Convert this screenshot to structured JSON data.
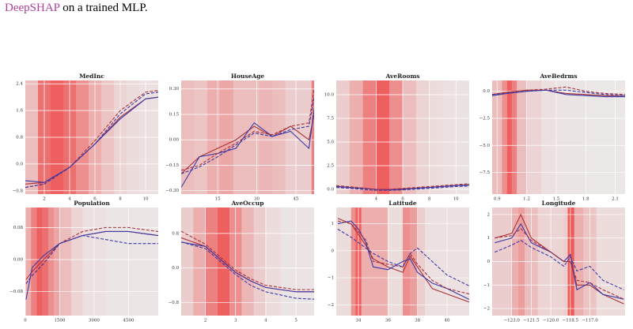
{
  "caption": {
    "link": "DeepSHAP",
    "text": "on a trained MLP."
  },
  "chart_data": [
    {
      "type": "line",
      "title": "MedInc",
      "xlim": [
        0.5,
        11
      ],
      "xticks": [
        2,
        4,
        6,
        8,
        10
      ],
      "ylim": [
        -0.9,
        2.5
      ],
      "yticks": [
        {
          "value": -0.8,
          "label": "−0.8"
        },
        {
          "value": 0,
          "label": "0.0"
        },
        0.8,
        1.6,
        2.4
      ],
      "x": [
        0.5,
        2,
        4,
        6,
        8,
        10,
        11
      ],
      "series": [
        {
          "color": "#a8323a",
          "dash": false,
          "values": [
            -0.6,
            -0.55,
            -0.1,
            0.6,
            1.4,
            1.95,
            2.0
          ]
        },
        {
          "color": "#3a3aa8",
          "dash": false,
          "values": [
            -0.5,
            -0.55,
            -0.1,
            0.6,
            1.35,
            1.95,
            2.0
          ]
        },
        {
          "color": "#a8323a",
          "dash": true,
          "values": [
            -0.7,
            -0.6,
            -0.1,
            0.7,
            1.6,
            2.15,
            2.2
          ]
        },
        {
          "color": "#3a3aa8",
          "dash": true,
          "values": [
            -0.7,
            -0.6,
            -0.1,
            0.6,
            1.5,
            2.1,
            2.15
          ]
        }
      ],
      "density_bins": [
        0.5,
        1.5,
        2.5,
        3.5,
        4.5,
        5.5,
        6.5,
        7.5,
        8.5,
        9.5,
        11
      ],
      "density": [
        0.3,
        0.8,
        0.9,
        0.8,
        0.6,
        0.4,
        0.25,
        0.15,
        0.1,
        0.08
      ]
    },
    {
      "type": "line",
      "title": "HouseAge",
      "xlim": [
        1,
        52
      ],
      "xticks": [
        15,
        30,
        45
      ],
      "ylim": [
        -0.32,
        0.35
      ],
      "yticks": [
        {
          "value": -0.3,
          "label": "−0.30"
        },
        {
          "value": -0.15,
          "label": "−0.15"
        },
        {
          "value": 0,
          "label": "0.00"
        },
        0.15,
        {
          "value": 0.3,
          "label": "0.30"
        }
      ],
      "x": [
        1,
        8,
        15,
        22,
        29,
        36,
        43,
        50,
        52
      ],
      "series": [
        {
          "color": "#a8323a",
          "dash": false,
          "values": [
            -0.2,
            -0.1,
            -0.05,
            0.0,
            0.08,
            0.02,
            0.08,
            0.0,
            0.15
          ]
        },
        {
          "color": "#3a3aa8",
          "dash": false,
          "values": [
            -0.28,
            -0.1,
            -0.08,
            -0.05,
            0.1,
            0.02,
            0.05,
            -0.05,
            0.18
          ]
        },
        {
          "color": "#a8323a",
          "dash": true,
          "values": [
            -0.18,
            -0.15,
            -0.08,
            -0.02,
            0.05,
            0.03,
            0.08,
            0.1,
            0.3
          ]
        },
        {
          "color": "#3a3aa8",
          "dash": true,
          "values": [
            -0.2,
            -0.16,
            -0.1,
            -0.03,
            0.04,
            0.02,
            0.06,
            0.08,
            0.25
          ]
        }
      ],
      "density_bins": [
        1,
        6,
        11,
        16,
        21,
        26,
        31,
        36,
        41,
        46,
        51,
        52
      ],
      "density": [
        0.3,
        0.25,
        0.4,
        0.45,
        0.3,
        0.3,
        0.35,
        0.3,
        0.2,
        0.2,
        0.7
      ]
    },
    {
      "type": "line",
      "title": "AveRooms",
      "xlim": [
        1,
        11
      ],
      "xticks": [
        4,
        6,
        8,
        10
      ],
      "ylim": [
        -0.5,
        11.5
      ],
      "yticks": [
        {
          "value": 0,
          "label": "0.0"
        },
        2.5,
        {
          "value": 5,
          "label": "5.0"
        },
        7.5,
        {
          "value": 10,
          "label": "10.0"
        }
      ],
      "x": [
        1,
        3,
        4,
        5,
        6,
        8,
        10,
        11
      ],
      "series": [
        {
          "color": "#a8323a",
          "dash": false,
          "values": [
            0.3,
            0.1,
            0,
            0,
            0.05,
            0.2,
            0.4,
            0.5
          ]
        },
        {
          "color": "#3a3aa8",
          "dash": false,
          "values": [
            0.3,
            0.1,
            0,
            -0.05,
            0,
            0.2,
            0.4,
            0.45
          ]
        },
        {
          "color": "#a8323a",
          "dash": true,
          "values": [
            0.4,
            0.15,
            0,
            0,
            0.1,
            0.3,
            0.5,
            0.6
          ]
        },
        {
          "color": "#3a3aa8",
          "dash": true,
          "values": [
            0.2,
            0.0,
            -0.1,
            -0.1,
            -0.05,
            0.1,
            0.3,
            0.35
          ]
        }
      ],
      "density_bins": [
        1,
        2,
        3,
        4,
        5,
        6,
        7,
        8,
        9,
        10,
        11
      ],
      "density": [
        0.2,
        0.4,
        0.7,
        0.9,
        0.6,
        0.3,
        0.15,
        0.1,
        0.08,
        0.06
      ]
    },
    {
      "type": "line",
      "title": "AveBedrms",
      "xlim": [
        0.85,
        2.2
      ],
      "xticks": [
        0.9,
        1.2,
        1.5,
        1.8,
        2.1
      ],
      "ylim": [
        -9.5,
        1
      ],
      "yticks": [
        {
          "value": -7.5,
          "label": "−7.5"
        },
        {
          "value": -5,
          "label": "−5.0"
        },
        {
          "value": -2.5,
          "label": "−2.5"
        },
        {
          "value": 0,
          "label": "0.0"
        }
      ],
      "x": [
        0.85,
        1.0,
        1.2,
        1.4,
        1.6,
        1.8,
        2.0,
        2.2
      ],
      "series": [
        {
          "color": "#a8323a",
          "dash": false,
          "values": [
            -0.3,
            -0.1,
            0.1,
            0.1,
            -0.2,
            -0.3,
            -0.4,
            -0.4
          ]
        },
        {
          "color": "#3a3aa8",
          "dash": false,
          "values": [
            -0.4,
            -0.2,
            0,
            0.1,
            -0.3,
            -0.4,
            -0.5,
            -0.5
          ]
        },
        {
          "color": "#a8323a",
          "dash": true,
          "values": [
            -0.3,
            -0.1,
            0.1,
            0.2,
            0.4,
            0,
            -0.2,
            -0.3
          ]
        },
        {
          "color": "#3a3aa8",
          "dash": true,
          "values": [
            -0.3,
            -0.2,
            0,
            0.1,
            0.1,
            -0.1,
            -0.3,
            -0.4
          ]
        }
      ],
      "density_bins": [
        0.85,
        0.95,
        1.0,
        1.05,
        1.1,
        1.2,
        1.35,
        1.5,
        1.8,
        2.2
      ],
      "density": [
        0.3,
        0.6,
        0.9,
        0.7,
        0.3,
        0.15,
        0.08,
        0.05,
        0.03
      ]
    },
    {
      "type": "line",
      "title": "Population",
      "xlim": [
        0,
        5800
      ],
      "xticks": [
        0,
        1500,
        3000,
        4500
      ],
      "ylim": [
        -0.14,
        0.13
      ],
      "yticks": [
        {
          "value": -0.08,
          "label": "−0.08"
        },
        {
          "value": 0,
          "label": "0.00"
        },
        0.08
      ],
      "x": [
        30,
        300,
        800,
        1500,
        2500,
        3500,
        4500,
        5800
      ],
      "series": [
        {
          "color": "#a8323a",
          "dash": false,
          "values": [
            -0.05,
            -0.03,
            0.0,
            0.04,
            0.06,
            0.07,
            0.07,
            0.06
          ]
        },
        {
          "color": "#3a3aa8",
          "dash": false,
          "values": [
            -0.1,
            -0.02,
            0.01,
            0.04,
            0.06,
            0.07,
            0.07,
            0.06
          ]
        },
        {
          "color": "#a8323a",
          "dash": true,
          "values": [
            -0.06,
            -0.04,
            -0.01,
            0.04,
            0.07,
            0.08,
            0.08,
            0.07
          ]
        },
        {
          "color": "#3a3aa8",
          "dash": true,
          "values": [
            -0.06,
            -0.04,
            -0.01,
            0.04,
            0.06,
            0.05,
            0.04,
            0.04
          ]
        }
      ],
      "density_bins": [
        0,
        250,
        500,
        750,
        1000,
        1250,
        1500,
        2000,
        2500,
        3500,
        5800
      ],
      "density": [
        0.4,
        0.7,
        0.9,
        0.8,
        0.6,
        0.45,
        0.3,
        0.15,
        0.08,
        0.04
      ]
    },
    {
      "type": "line",
      "title": "AveOccup",
      "xlim": [
        1.2,
        5.6
      ],
      "xticks": [
        2,
        3,
        4,
        5
      ],
      "ylim": [
        -1.1,
        1.4
      ],
      "yticks": [
        {
          "value": -0.8,
          "label": "−0.8"
        },
        {
          "value": 0,
          "label": "0.0"
        },
        0.8
      ],
      "x": [
        1.2,
        2,
        2.5,
        3,
        3.5,
        4,
        5,
        5.6
      ],
      "series": [
        {
          "color": "#a8323a",
          "dash": false,
          "values": [
            0.7,
            0.5,
            0.2,
            -0.1,
            -0.3,
            -0.45,
            -0.55,
            -0.55
          ]
        },
        {
          "color": "#3a3aa8",
          "dash": false,
          "values": [
            0.6,
            0.5,
            0.2,
            -0.1,
            -0.3,
            -0.45,
            -0.55,
            -0.55
          ]
        },
        {
          "color": "#a8323a",
          "dash": true,
          "values": [
            0.85,
            0.55,
            0.25,
            -0.05,
            -0.25,
            -0.4,
            -0.5,
            -0.5
          ]
        },
        {
          "color": "#3a3aa8",
          "dash": true,
          "values": [
            0.6,
            0.45,
            0.15,
            -0.15,
            -0.4,
            -0.55,
            -0.7,
            -0.72
          ]
        }
      ],
      "density_bins": [
        1.2,
        1.6,
        2,
        2.4,
        2.8,
        3.2,
        3.6,
        4,
        4.5,
        5.6
      ],
      "density": [
        0.2,
        0.4,
        0.7,
        0.9,
        0.6,
        0.35,
        0.2,
        0.1,
        0.05
      ]
    },
    {
      "type": "line",
      "title": "Latitude",
      "xlim": [
        32.5,
        41.5
      ],
      "xticks": [
        34,
        36,
        38,
        40
      ],
      "ylim": [
        -2.4,
        1.6
      ],
      "yticks": [
        {
          "value": -2,
          "label": "−2"
        },
        {
          "value": -1,
          "label": "−1"
        },
        0,
        1
      ],
      "x": [
        32.6,
        33.5,
        34,
        34.5,
        35,
        36,
        37,
        37.5,
        38,
        39,
        40,
        41.5
      ],
      "series": [
        {
          "color": "#a8323a",
          "dash": false,
          "values": [
            1.2,
            1.0,
            0.6,
            0.2,
            -0.3,
            -0.6,
            -0.8,
            -0.2,
            -0.6,
            -1.4,
            -1.6,
            -1.9
          ]
        },
        {
          "color": "#3a3aa8",
          "dash": false,
          "values": [
            1.0,
            1.1,
            0.8,
            0.3,
            -0.6,
            -0.7,
            -0.4,
            -0.3,
            -0.8,
            -1.2,
            -1.4,
            -1.8
          ]
        },
        {
          "color": "#a8323a",
          "dash": true,
          "values": [
            1.1,
            1.0,
            0.7,
            0.4,
            -0.4,
            -0.5,
            -0.6,
            -0.1,
            -0.5,
            -1.1,
            -1.4,
            -1.6
          ]
        },
        {
          "color": "#3a3aa8",
          "dash": true,
          "values": [
            0.8,
            0.5,
            0.3,
            0.1,
            -0.1,
            -0.4,
            -0.6,
            -0.1,
            0.1,
            -0.4,
            -0.9,
            -1.3
          ]
        }
      ],
      "density_bins": [
        32.5,
        33.5,
        33.8,
        34.2,
        36,
        37,
        37.5,
        38,
        38.5,
        41.5
      ],
      "density": [
        0.1,
        0.6,
        0.9,
        0.4,
        0.1,
        0.6,
        0.5,
        0.2,
        0.08
      ]
    },
    {
      "type": "line",
      "title": "Longitude",
      "xlim": [
        -124.5,
        -114.3
      ],
      "xticks": [
        {
          "value": -123,
          "label": "−123.0"
        },
        {
          "value": -121.5,
          "label": "−121.5"
        },
        {
          "value": -120,
          "label": "−120.0"
        },
        {
          "value": -118.5,
          "label": "−118.5"
        },
        {
          "value": -117,
          "label": "−117.0"
        }
      ],
      "ylim": [
        -2.3,
        2.3
      ],
      "yticks": [
        {
          "value": -2,
          "label": "−2"
        },
        {
          "value": -1,
          "label": "−1"
        },
        0,
        1,
        2
      ],
      "x": [
        -124.3,
        -123,
        -122.3,
        -121.5,
        -120,
        -119,
        -118.5,
        -118,
        -117,
        -116,
        -114.4
      ],
      "series": [
        {
          "color": "#a8323a",
          "dash": false,
          "values": [
            1.0,
            1.2,
            2.0,
            1.0,
            0.4,
            0.0,
            0.0,
            -1.0,
            -1.0,
            -1.4,
            -1.8
          ]
        },
        {
          "color": "#3a3aa8",
          "dash": false,
          "values": [
            0.8,
            1.0,
            1.6,
            0.8,
            0.4,
            0.0,
            0.3,
            -1.2,
            -0.9,
            -1.4,
            -1.6
          ]
        },
        {
          "color": "#a8323a",
          "dash": true,
          "values": [
            1.0,
            1.1,
            1.4,
            0.9,
            0.4,
            0.0,
            0.0,
            -0.8,
            -0.9,
            -1.2,
            -1.6
          ]
        },
        {
          "color": "#3a3aa8",
          "dash": true,
          "values": [
            0.4,
            0.7,
            0.9,
            0.6,
            0.2,
            -0.2,
            0.2,
            -0.4,
            -0.2,
            -0.8,
            -1.2
          ]
        }
      ],
      "density_bins": [
        -124.5,
        -123,
        -122.5,
        -122,
        -121,
        -119,
        -118.7,
        -118.2,
        -117.5,
        -116.5,
        -114.3
      ],
      "density": [
        0.2,
        0.4,
        0.5,
        0.3,
        0.15,
        0.2,
        0.95,
        0.4,
        0.25,
        0.1
      ]
    }
  ]
}
